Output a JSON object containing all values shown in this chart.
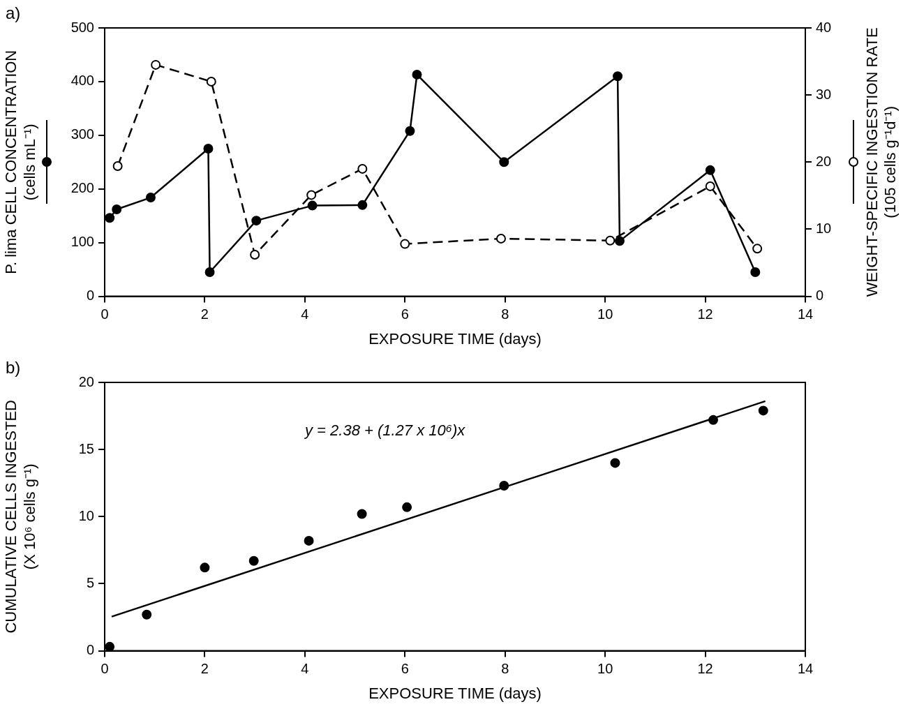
{
  "chart_data": [
    {
      "type": "line",
      "title": "a)",
      "xlabel": "EXPOSURE TIME (days)",
      "ylabel": "P. lima CELL CONCENTRATION\n(cells mL⁻¹)",
      "y2label": "WEIGHT-SPECIFIC INGESTION RATE\n(105 cells g⁻¹d⁻¹)",
      "xlim": [
        0,
        14
      ],
      "xticks": [
        0,
        2,
        4,
        6,
        8,
        10,
        12,
        14
      ],
      "ylim": [
        0,
        500
      ],
      "yticks": [
        0,
        100,
        200,
        300,
        400,
        500
      ],
      "y2lim": [
        0,
        40
      ],
      "y2ticks": [
        0,
        10,
        20,
        30,
        40
      ],
      "grid": false,
      "legend": false,
      "marker": "circle",
      "series": [
        {
          "color": "#000000",
          "line_style": "solid",
          "x": [
            0.1,
            0.24,
            0.92,
            2.07,
            2.1,
            3.03,
            4.15,
            5.15,
            6.1,
            6.24,
            7.98,
            10.25,
            10.29,
            12.1,
            13.0
          ],
          "values": [
            146,
            162,
            184,
            275,
            45,
            141,
            169,
            170,
            308,
            413,
            250,
            410,
            103,
            235,
            45
          ]
        },
        {
          "color": "#000000",
          "line_style": "dashed",
          "axis": "y2",
          "x": [
            0.26,
            1.02,
            2.13,
            3.0,
            4.13,
            5.15,
            6.0,
            7.92,
            10.1,
            12.1,
            13.04
          ],
          "values": [
            19.4,
            34.5,
            32.0,
            6.2,
            15.1,
            19.0,
            7.8,
            8.6,
            8.3,
            16.4,
            7.1
          ]
        }
      ]
    },
    {
      "type": "scatter",
      "title": "b)",
      "xlabel": "EXPOSURE TIME (days)",
      "ylabel": "CUMULATIVE CELLS INGESTED\n(X 10⁶ cells g⁻¹)",
      "xlim": [
        0,
        14
      ],
      "xticks": [
        0,
        2,
        4,
        6,
        8,
        10,
        12,
        14
      ],
      "ylim": [
        0,
        20
      ],
      "yticks": [
        0,
        5,
        10,
        15,
        20
      ],
      "grid": false,
      "legend": false,
      "marker": "circle",
      "annotations": [
        "y = 2.38 + (1.27 x 10⁶)x"
      ],
      "series": [
        {
          "color": "#000000",
          "x": [
            0.1,
            0.84,
            2.0,
            2.98,
            4.08,
            5.14,
            6.04,
            7.98,
            10.2,
            12.16,
            13.16
          ],
          "values": [
            0.3,
            2.7,
            6.2,
            6.7,
            8.2,
            10.2,
            10.7,
            12.3,
            14.0,
            17.2,
            17.9
          ]
        },
        {
          "type": "line",
          "color": "#000000",
          "marker": "none",
          "line_style": "solid",
          "x": [
            0.14,
            13.2
          ],
          "values": [
            2.55,
            18.6
          ]
        }
      ]
    }
  ]
}
